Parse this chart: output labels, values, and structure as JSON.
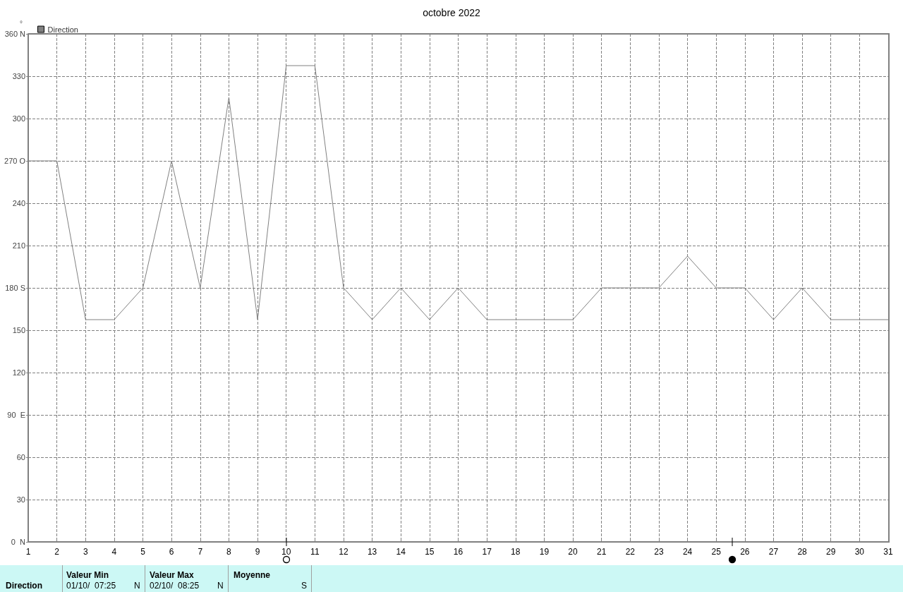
{
  "chart_data": {
    "type": "line",
    "title": "octobre 2022",
    "ylabel": "°",
    "x": [
      1,
      2,
      3,
      4,
      5,
      6,
      7,
      8,
      9,
      10,
      11,
      12,
      13,
      14,
      15,
      16,
      17,
      18,
      19,
      20,
      21,
      22,
      23,
      24,
      25,
      26,
      27,
      28,
      29,
      30,
      31
    ],
    "series": [
      {
        "name": "Direction",
        "color": "#808080",
        "values": [
          270,
          270,
          157.5,
          157.5,
          180,
          270,
          180,
          315,
          157.5,
          337.5,
          337.5,
          180,
          157.5,
          180,
          157.5,
          180,
          157.5,
          157.5,
          157.5,
          157.5,
          180,
          180,
          180,
          202.5,
          180,
          180,
          157.5,
          180,
          157.5,
          157.5,
          157.5
        ]
      }
    ],
    "xlim": [
      1,
      31
    ],
    "xticks": [
      1,
      2,
      3,
      4,
      5,
      6,
      7,
      8,
      9,
      10,
      11,
      12,
      13,
      14,
      15,
      16,
      17,
      18,
      19,
      20,
      21,
      22,
      23,
      24,
      25,
      26,
      27,
      28,
      29,
      30,
      31
    ],
    "ylim": [
      0,
      360
    ],
    "yticks": [
      {
        "value": 0,
        "label": "0  N"
      },
      30,
      60,
      {
        "value": 90,
        "label": "90  E"
      },
      120,
      150,
      {
        "value": 180,
        "label": "180 S"
      },
      210,
      240,
      {
        "value": 270,
        "label": "270 O"
      },
      300,
      330,
      {
        "value": 360,
        "label": "360 N"
      }
    ],
    "grid": true,
    "legend": "top left",
    "marker": "none",
    "line_style": "solid",
    "annotations": [
      "Direction",
      "Valeur Min",
      "01/10/  07:25",
      "N",
      "Valeur Max",
      "02/10/  08:25",
      "N",
      "Moyenne",
      "S"
    ]
  }
}
